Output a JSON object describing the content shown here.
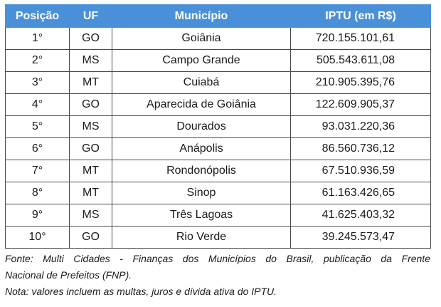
{
  "table": {
    "headers": [
      "Posição",
      "UF",
      "Município",
      "IPTU (em R$)"
    ],
    "rows": [
      [
        "1°",
        "GO",
        "Goiânia",
        "720.155.101,61"
      ],
      [
        "2°",
        "MS",
        "Campo Grande",
        "505.543.611,08"
      ],
      [
        "3°",
        "MT",
        "Cuiabá",
        "210.905.395,76"
      ],
      [
        "4°",
        "GO",
        "Aparecida de Goiânia",
        "122.609.905,37"
      ],
      [
        "5°",
        "MS",
        "Dourados",
        "93.031.220,36"
      ],
      [
        "6°",
        "GO",
        "Anápolis",
        "86.560.736,12"
      ],
      [
        "7°",
        "MT",
        "Rondonópolis",
        "67.510.936,59"
      ],
      [
        "8°",
        "MT",
        "Sinop",
        "61.163.426,65"
      ],
      [
        "9°",
        "MS",
        "Três Lagoas",
        "41.625.403,32"
      ],
      [
        "10°",
        "GO",
        "Rio Verde",
        "39.245.573,47"
      ]
    ]
  },
  "notes": {
    "source_line1": "Fonte: Multi Cidades - Finanças dos Municípios do Brasil, publicação da Frente",
    "source_line2": "Nacional de Prefeitos (FNP).",
    "note": "Nota: valores incluem as multas, juros e dívida ativa do IPTU."
  },
  "colors": {
    "header_background": "#4a90d9",
    "header_text": "#ffffff",
    "border": "#4a4a4a"
  }
}
